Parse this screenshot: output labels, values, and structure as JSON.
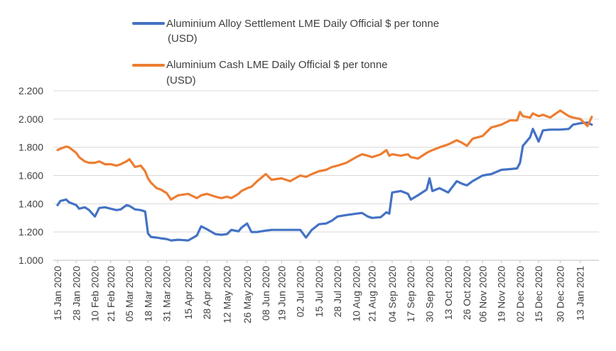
{
  "chart_data": {
    "type": "line",
    "title": "",
    "xlabel": "",
    "ylabel": "",
    "ylim": [
      1000,
      2200
    ],
    "y_ticks": [
      1000,
      1200,
      1400,
      1600,
      1800,
      2000,
      2200
    ],
    "y_tick_labels": [
      "1.000",
      "1.200",
      "1.400",
      "1.600",
      "1.800",
      "2.000",
      "2.200"
    ],
    "x_ticks": [
      "15 Jan 2020",
      "28 Jan 2020",
      "10 Feb 2020",
      "21 Feb 2020",
      "05 Mar 2020",
      "18 Mar 2020",
      "31 Mar 2020",
      "15 Apr 2020",
      "28 Apr 2020",
      "12 May 2020",
      "26 May 2020",
      "08 Jun 2020",
      "19 Jun 2020",
      "02 Jul 2020",
      "15 Jul 2020",
      "28 Jul 2020",
      "10 Aug 2020",
      "21 Aug 2020",
      "04 Sep 2020",
      "17 Sep 2020",
      "30 Sep 2020",
      "13 Oct 2020",
      "26 Oct 2020",
      "06 Nov 2020",
      "19 Nov 2020",
      "02 Dec 2020",
      "15 Dec 2020",
      "30 Dec 2020",
      "13 Jan 2021"
    ],
    "grid": "horizontal",
    "legend_position": "top",
    "series": [
      {
        "name_line1": "Aluminium Alloy Settlement LME Daily Official $ per tonne",
        "name_line2": "(USD)",
        "color": "#4472C4",
        "x": [
          "15 Jan 2020",
          "17 Jan 2020",
          "21 Jan 2020",
          "23 Jan 2020",
          "28 Jan 2020",
          "30 Jan 2020",
          "03 Feb 2020",
          "06 Feb 2020",
          "10 Feb 2020",
          "13 Feb 2020",
          "17 Feb 2020",
          "21 Feb 2020",
          "25 Feb 2020",
          "28 Feb 2020",
          "03 Mar 2020",
          "05 Mar 2020",
          "09 Mar 2020",
          "13 Mar 2020",
          "16 Mar 2020",
          "18 Mar 2020",
          "20 Mar 2020",
          "24 Mar 2020",
          "27 Mar 2020",
          "31 Mar 2020",
          "03 Apr 2020",
          "08 Apr 2020",
          "15 Apr 2020",
          "21 Apr 2020",
          "24 Apr 2020",
          "28 Apr 2020",
          "04 May 2020",
          "08 May 2020",
          "12 May 2020",
          "15 May 2020",
          "20 May 2020",
          "22 May 2020",
          "26 May 2020",
          "29 May 2020",
          "02 Jun 2020",
          "08 Jun 2020",
          "12 Jun 2020",
          "19 Jun 2020",
          "25 Jun 2020",
          "02 Jul 2020",
          "06 Jul 2020",
          "10 Jul 2020",
          "15 Jul 2020",
          "20 Jul 2020",
          "24 Jul 2020",
          "28 Jul 2020",
          "03 Aug 2020",
          "10 Aug 2020",
          "14 Aug 2020",
          "18 Aug 2020",
          "21 Aug 2020",
          "27 Aug 2020",
          "31 Aug 2020",
          "02 Sep 2020",
          "04 Sep 2020",
          "10 Sep 2020",
          "15 Sep 2020",
          "17 Sep 2020",
          "22 Sep 2020",
          "28 Sep 2020",
          "30 Sep 2020",
          "02 Oct 2020",
          "07 Oct 2020",
          "13 Oct 2020",
          "19 Oct 2020",
          "23 Oct 2020",
          "26 Oct 2020",
          "30 Oct 2020",
          "06 Nov 2020",
          "12 Nov 2020",
          "19 Nov 2020",
          "25 Nov 2020",
          "30 Nov 2020",
          "02 Dec 2020",
          "04 Dec 2020",
          "09 Dec 2020",
          "11 Dec 2020",
          "15 Dec 2020",
          "18 Dec 2020",
          "23 Dec 2020",
          "30 Dec 2020",
          "05 Jan 2021",
          "08 Jan 2021",
          "13 Jan 2021",
          "18 Jan 2021",
          "21 Jan 2021"
        ],
        "values": [
          1390,
          1420,
          1430,
          1410,
          1390,
          1365,
          1375,
          1355,
          1310,
          1370,
          1375,
          1365,
          1355,
          1360,
          1390,
          1385,
          1360,
          1355,
          1345,
          1190,
          1165,
          1160,
          1155,
          1150,
          1140,
          1145,
          1140,
          1175,
          1240,
          1220,
          1185,
          1180,
          1185,
          1215,
          1205,
          1230,
          1260,
          1200,
          1200,
          1210,
          1215,
          1215,
          1215,
          1215,
          1160,
          1215,
          1255,
          1260,
          1280,
          1310,
          1320,
          1330,
          1335,
          1310,
          1300,
          1305,
          1340,
          1330,
          1480,
          1490,
          1470,
          1430,
          1460,
          1500,
          1580,
          1490,
          1510,
          1480,
          1560,
          1540,
          1530,
          1560,
          1600,
          1610,
          1640,
          1645,
          1650,
          1690,
          1810,
          1870,
          1930,
          1840,
          1920,
          1925,
          1925,
          1930,
          1960,
          1970,
          1975,
          1960
        ]
      },
      {
        "name_line1": "Aluminium Cash LME Daily Official $ per tonne",
        "name_line2": "(USD)",
        "color": "#ED7D31",
        "x": [
          "15 Jan 2020",
          "17 Jan 2020",
          "21 Jan 2020",
          "23 Jan 2020",
          "28 Jan 2020",
          "30 Jan 2020",
          "03 Feb 2020",
          "06 Feb 2020",
          "10 Feb 2020",
          "13 Feb 2020",
          "17 Feb 2020",
          "21 Feb 2020",
          "25 Feb 2020",
          "28 Feb 2020",
          "03 Mar 2020",
          "05 Mar 2020",
          "09 Mar 2020",
          "13 Mar 2020",
          "16 Mar 2020",
          "18 Mar 2020",
          "20 Mar 2020",
          "24 Mar 2020",
          "27 Mar 2020",
          "31 Mar 2020",
          "03 Apr 2020",
          "08 Apr 2020",
          "15 Apr 2020",
          "21 Apr 2020",
          "24 Apr 2020",
          "28 Apr 2020",
          "04 May 2020",
          "08 May 2020",
          "12 May 2020",
          "15 May 2020",
          "20 May 2020",
          "22 May 2020",
          "26 May 2020",
          "29 May 2020",
          "02 Jun 2020",
          "08 Jun 2020",
          "12 Jun 2020",
          "19 Jun 2020",
          "25 Jun 2020",
          "02 Jul 2020",
          "06 Jul 2020",
          "10 Jul 2020",
          "15 Jul 2020",
          "20 Jul 2020",
          "24 Jul 2020",
          "28 Jul 2020",
          "03 Aug 2020",
          "10 Aug 2020",
          "14 Aug 2020",
          "18 Aug 2020",
          "21 Aug 2020",
          "27 Aug 2020",
          "31 Aug 2020",
          "02 Sep 2020",
          "04 Sep 2020",
          "10 Sep 2020",
          "15 Sep 2020",
          "17 Sep 2020",
          "22 Sep 2020",
          "28 Sep 2020",
          "30 Sep 2020",
          "02 Oct 2020",
          "07 Oct 2020",
          "13 Oct 2020",
          "19 Oct 2020",
          "23 Oct 2020",
          "26 Oct 2020",
          "30 Oct 2020",
          "06 Nov 2020",
          "12 Nov 2020",
          "19 Nov 2020",
          "25 Nov 2020",
          "30 Nov 2020",
          "02 Dec 2020",
          "04 Dec 2020",
          "09 Dec 2020",
          "11 Dec 2020",
          "15 Dec 2020",
          "18 Dec 2020",
          "23 Dec 2020",
          "30 Dec 2020",
          "05 Jan 2021",
          "08 Jan 2021",
          "13 Jan 2021",
          "18 Jan 2021",
          "21 Jan 2021"
        ],
        "values": [
          1780,
          1790,
          1805,
          1800,
          1760,
          1730,
          1700,
          1690,
          1690,
          1700,
          1680,
          1680,
          1670,
          1680,
          1700,
          1715,
          1660,
          1670,
          1630,
          1580,
          1550,
          1510,
          1500,
          1475,
          1430,
          1460,
          1470,
          1440,
          1460,
          1470,
          1450,
          1440,
          1450,
          1440,
          1470,
          1490,
          1510,
          1520,
          1560,
          1610,
          1570,
          1580,
          1560,
          1600,
          1590,
          1610,
          1630,
          1640,
          1660,
          1670,
          1690,
          1730,
          1750,
          1740,
          1730,
          1750,
          1780,
          1740,
          1750,
          1740,
          1750,
          1730,
          1720,
          1760,
          1770,
          1780,
          1800,
          1820,
          1850,
          1830,
          1810,
          1860,
          1880,
          1940,
          1960,
          1990,
          1990,
          2050,
          2020,
          2010,
          2040,
          2020,
          2030,
          2010,
          2060,
          2020,
          2010,
          2000,
          1950,
          2015
        ]
      }
    ]
  }
}
